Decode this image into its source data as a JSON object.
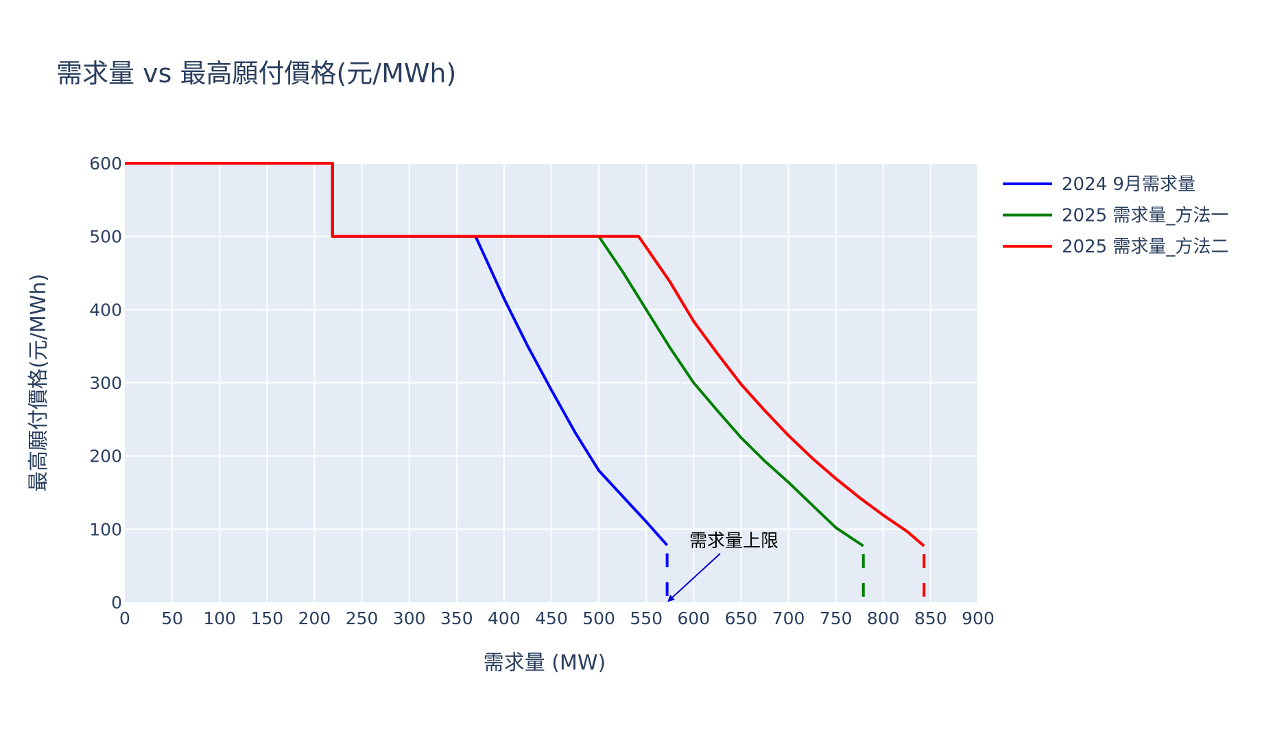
{
  "title": "需求量 vs 最高願付價格(元/MWh)",
  "chart_data": {
    "type": "line",
    "title": "需求量 vs 最高願付價格(元/MWh)",
    "xlabel": "需求量 (MW)",
    "ylabel": "最高願付價格(元/MWh)",
    "xlim": [
      0,
      900
    ],
    "ylim": [
      0,
      600
    ],
    "xticks": [
      0,
      50,
      100,
      150,
      200,
      250,
      300,
      350,
      400,
      450,
      500,
      550,
      600,
      650,
      700,
      750,
      800,
      850,
      900
    ],
    "yticks": [
      0,
      100,
      200,
      300,
      400,
      500,
      600
    ],
    "grid": true,
    "legend_position": "right-top",
    "series": [
      {
        "name": "2024 9月需求量",
        "color": "#0000ff",
        "x": [
          0,
          219,
          219,
          370,
          400,
          425,
          450,
          475,
          500,
          525,
          550,
          572
        ],
        "y": [
          600,
          600,
          500,
          500,
          415,
          350,
          290,
          232,
          180,
          145,
          110,
          78
        ],
        "cap": {
          "x": 572,
          "y_from": 78,
          "y_to": 0,
          "style": "dashed"
        }
      },
      {
        "name": "2025 需求量_方法一",
        "color": "#008000",
        "x": [
          0,
          219,
          219,
          500,
          525,
          550,
          575,
          600,
          625,
          650,
          675,
          700,
          725,
          750,
          779
        ],
        "y": [
          600,
          600,
          500,
          500,
          452,
          400,
          348,
          300,
          262,
          225,
          193,
          164,
          133,
          102,
          77
        ],
        "cap": {
          "x": 779,
          "y_from": 77,
          "y_to": 0,
          "style": "dashed"
        }
      },
      {
        "name": "2025 需求量_方法二",
        "color": "#ff0000",
        "x": [
          0,
          219,
          219,
          542,
          575,
          600,
          625,
          650,
          675,
          700,
          725,
          750,
          775,
          800,
          825,
          843
        ],
        "y": [
          600,
          600,
          500,
          500,
          438,
          384,
          340,
          298,
          262,
          228,
          197,
          169,
          143,
          119,
          97,
          77
        ],
        "cap": {
          "x": 843,
          "y_from": 77,
          "y_to": 0,
          "style": "dashed"
        }
      }
    ],
    "annotations": [
      {
        "text": "需求量上限",
        "arrow_to": {
          "x": 572,
          "y": 0
        },
        "arrow_color": "#0000cc"
      }
    ]
  },
  "legend": {
    "items": [
      {
        "label": "2024 9月需求量",
        "color": "#0000ff"
      },
      {
        "label": "2025 需求量_方法一",
        "color": "#008000"
      },
      {
        "label": "2025 需求量_方法二",
        "color": "#ff0000"
      }
    ]
  },
  "axes": {
    "x_title": "需求量 (MW)",
    "y_title": "最高願付價格(元/MWh)"
  },
  "annotation": {
    "text": "需求量上限"
  }
}
